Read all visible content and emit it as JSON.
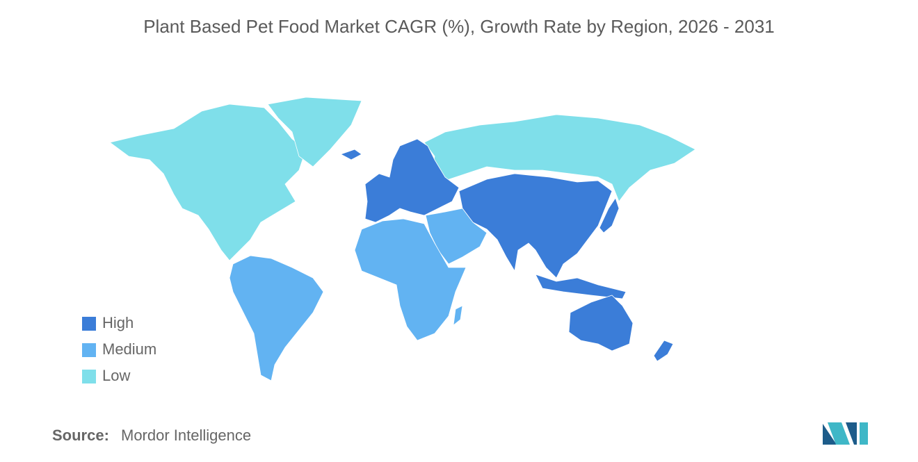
{
  "title": "Plant Based Pet Food Market CAGR (%), Growth Rate by Region, 2026 - 2031",
  "legend": [
    {
      "label": "High",
      "color": "#3b7dd8"
    },
    {
      "label": "Medium",
      "color": "#62b3f2"
    },
    {
      "label": "Low",
      "color": "#7fdfea"
    }
  ],
  "source": {
    "label": "Source:",
    "text": "Mordor Intelligence"
  }
}
